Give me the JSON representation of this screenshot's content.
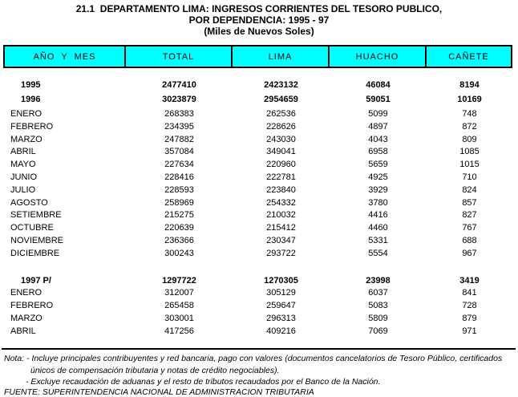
{
  "title": {
    "line1": "21.1  DEPARTAMENTO LIMA: INGRESOS CORRIENTES DEL TESORO PUBLICO,",
    "line2": "POR DEPENDENCIA: 1995 - 97",
    "line3": "(Miles de Nuevos Soles)"
  },
  "colors": {
    "header_bg": "#00FFFF",
    "border": "#000000"
  },
  "table": {
    "columns": [
      "AÑO  Y  MES",
      "TOTAL",
      "LIMA",
      "HUACHO",
      "CAÑETE"
    ],
    "rows": [
      {
        "label": "1995",
        "style": "year",
        "values": [
          "2477410",
          "2423132",
          "46084",
          "8194"
        ]
      },
      {
        "label": "1996",
        "style": "year",
        "values": [
          "3023879",
          "2954659",
          "59051",
          "10169"
        ]
      },
      {
        "label": "ENERO",
        "style": "month",
        "values": [
          "268383",
          "262536",
          "5099",
          "748"
        ]
      },
      {
        "label": "FEBRERO",
        "style": "month",
        "values": [
          "234395",
          "228626",
          "4897",
          "872"
        ]
      },
      {
        "label": "MARZO",
        "style": "month",
        "values": [
          "247882",
          "243030",
          "4043",
          "809"
        ]
      },
      {
        "label": "ABRIL",
        "style": "month",
        "values": [
          "357084",
          "349041",
          "6958",
          "1085"
        ]
      },
      {
        "label": "MAYO",
        "style": "month",
        "values": [
          "227634",
          "220960",
          "5659",
          "1015"
        ]
      },
      {
        "label": "JUNIO",
        "style": "month",
        "values": [
          "228416",
          "222781",
          "4925",
          "710"
        ]
      },
      {
        "label": "JULIO",
        "style": "month",
        "values": [
          "228593",
          "223840",
          "3929",
          "824"
        ]
      },
      {
        "label": "AGOSTO",
        "style": "month",
        "values": [
          "258969",
          "254332",
          "3780",
          "857"
        ]
      },
      {
        "label": "SETIEMBRE",
        "style": "month",
        "values": [
          "215275",
          "210032",
          "4416",
          "827"
        ]
      },
      {
        "label": "OCTUBRE",
        "style": "month",
        "values": [
          "220639",
          "215412",
          "4460",
          "767"
        ]
      },
      {
        "label": "NOVIEMBRE",
        "style": "month",
        "values": [
          "236366",
          "230347",
          "5331",
          "688"
        ]
      },
      {
        "label": "DICIEMBRE",
        "style": "month",
        "values": [
          "300243",
          "293722",
          "5554",
          "967"
        ]
      },
      {
        "label": "1997 P/",
        "style": "year",
        "values": [
          "1297722",
          "1270305",
          "23998",
          "3419"
        ]
      },
      {
        "label": "ENERO",
        "style": "month",
        "values": [
          "312007",
          "305129",
          "6037",
          "841"
        ]
      },
      {
        "label": "FEBRERO",
        "style": "month",
        "values": [
          "265458",
          "259647",
          "5083",
          "728"
        ]
      },
      {
        "label": "MARZO",
        "style": "month",
        "values": [
          "303001",
          "296313",
          "5809",
          "879"
        ]
      },
      {
        "label": "ABRIL",
        "style": "month",
        "values": [
          "417256",
          "409216",
          "7069",
          "971"
        ]
      }
    ]
  },
  "notes": {
    "line1": "Nota: - Incluye principales contribuyentes y red bancaria, pago con valores (documentos cancelatorios de Tesoro Público, certificados",
    "line2": "únicos de compensación tributaria y notas de crédito negociables).",
    "line3": "- Excluye recaudación de aduanas y el resto de tributos recaudados por el Banco de la Nación.",
    "fuente": "FUENTE: SUPERINTENDENCIA NACIONAL DE ADMINISTRACION TRIBUTARIA"
  }
}
